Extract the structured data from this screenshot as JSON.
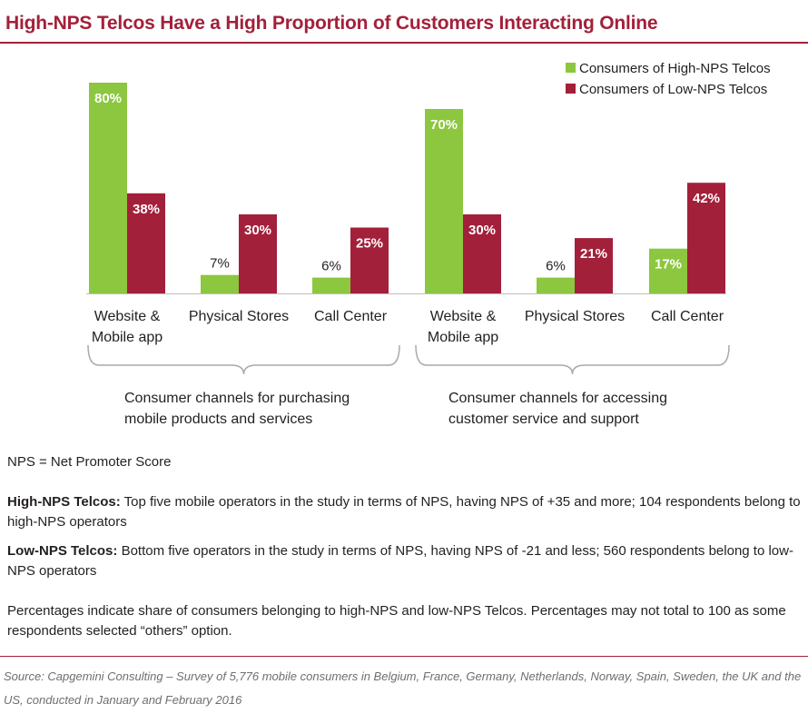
{
  "title": "High-NPS Telcos Have a High Proportion of Customers Interacting Online",
  "chart_data": {
    "type": "bar",
    "categories": [
      "Website & Mobile app",
      "Physical Stores",
      "Call Center",
      "Website & Mobile app",
      "Physical Stores",
      "Call Center"
    ],
    "category_lines": [
      [
        "Website &",
        "Mobile app"
      ],
      [
        "Physical Stores"
      ],
      [
        "Call Center"
      ],
      [
        "Website &",
        "Mobile app"
      ],
      [
        "Physical Stores"
      ],
      [
        "Call Center"
      ]
    ],
    "series": [
      {
        "name": "Consumers of High-NPS Telcos",
        "color": "#8dc63f",
        "values": [
          80,
          7,
          6,
          70,
          6,
          17
        ]
      },
      {
        "name": "Consumers of Low-NPS Telcos",
        "color": "#a3203a",
        "values": [
          38,
          30,
          25,
          30,
          21,
          42
        ]
      }
    ],
    "value_labels": {
      "high": [
        "80%",
        "7%",
        "6%",
        "70%",
        "6%",
        "17%"
      ],
      "low": [
        "38%",
        "30%",
        "25%",
        "30%",
        "21%",
        "42%"
      ]
    },
    "groups": [
      {
        "lines": [
          "Consumer channels for purchasing",
          "mobile products and services"
        ]
      },
      {
        "lines": [
          "Consumer channels for accessing",
          "customer service and support"
        ]
      }
    ],
    "ylim": [
      0,
      80
    ],
    "legend_position": "top-right",
    "xlabel": "",
    "ylabel": ""
  },
  "notes": {
    "nps_definition": "NPS = Net Promoter Score",
    "high_label": "High-NPS Telcos:",
    "high_text": " Top five mobile operators in the study in terms of NPS, having NPS of +35 and more; 104 respondents belong to high-NPS operators",
    "low_label": "Low-NPS Telcos:",
    "low_text": " Bottom five operators in the study in terms of NPS, having NPS of -21 and less; 560 respondents belong to low-NPS operators",
    "percent_note": "Percentages indicate share of consumers belonging to high-NPS and low-NPS Telcos. Percentages may not total to 100 as some respondents selected “others” option."
  },
  "source": "Source: Capgemini Consulting – Survey of 5,776 mobile consumers in Belgium, France, Germany, Netherlands, Norway, Spain, Sweden, the UK and the US, conducted in January and February 2016"
}
